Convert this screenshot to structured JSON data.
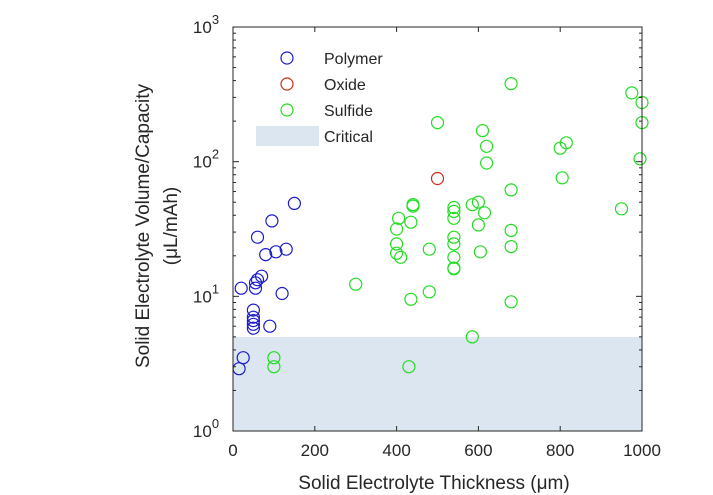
{
  "chart_data": {
    "type": "scatter",
    "title": "",
    "xlabel": "Solid Electrolyte Thickness (μm)",
    "ylabel_line1": "Solid Electrolyte Volume/Capacity",
    "ylabel_line2": "(μL/mAh)",
    "xlim": [
      0,
      1000
    ],
    "ylim": [
      1,
      1000
    ],
    "yscale": "log",
    "grid": false,
    "legend_position": "top-left",
    "x_ticks": [
      0,
      200,
      400,
      600,
      800,
      1000
    ],
    "y_ticks": [
      {
        "value": 1,
        "base": "10",
        "exp": "0"
      },
      {
        "value": 10,
        "base": "10",
        "exp": "1"
      },
      {
        "value": 100,
        "base": "10",
        "exp": "2"
      },
      {
        "value": 1000,
        "base": "10",
        "exp": "3"
      }
    ],
    "critical_region": {
      "name": "Critical",
      "y_min": 1,
      "y_max": 5,
      "color": "#dce6f0"
    },
    "series": [
      {
        "name": "Polymer",
        "color": "#1a1acc",
        "points": [
          [
            15,
            2.9
          ],
          [
            20,
            11.5
          ],
          [
            25,
            3.5
          ],
          [
            50,
            5.8
          ],
          [
            50,
            6.2
          ],
          [
            50,
            6.6
          ],
          [
            50,
            7.0
          ],
          [
            50,
            7.9
          ],
          [
            55,
            11.5
          ],
          [
            55,
            12.6
          ],
          [
            60,
            13.3
          ],
          [
            60,
            27.5
          ],
          [
            70,
            14.1
          ],
          [
            80,
            20.4
          ],
          [
            90,
            6.0
          ],
          [
            95,
            36.3
          ],
          [
            105,
            21.4
          ],
          [
            120,
            10.5
          ],
          [
            130,
            22.4
          ],
          [
            150,
            49.0
          ]
        ]
      },
      {
        "name": "Oxide",
        "color": "#cc2a1a",
        "points": [
          [
            500,
            75
          ]
        ]
      },
      {
        "name": "Sulfide",
        "color": "#22dd22",
        "points": [
          [
            100,
            3.0
          ],
          [
            100,
            3.5
          ],
          [
            300,
            12.3
          ],
          [
            400,
            20.9
          ],
          [
            400,
            24.5
          ],
          [
            400,
            31.6
          ],
          [
            405,
            38.0
          ],
          [
            410,
            19.5
          ],
          [
            430,
            3.0
          ],
          [
            435,
            9.5
          ],
          [
            435,
            35.5
          ],
          [
            440,
            46.8
          ],
          [
            440,
            48.0
          ],
          [
            480,
            10.8
          ],
          [
            480,
            22.4
          ],
          [
            500,
            195
          ],
          [
            540,
            16.0
          ],
          [
            540,
            16.2
          ],
          [
            540,
            19.5
          ],
          [
            540,
            24.5
          ],
          [
            540,
            27.5
          ],
          [
            540,
            38.0
          ],
          [
            540,
            42.7
          ],
          [
            540,
            45.7
          ],
          [
            585,
            5.0
          ],
          [
            585,
            47.9
          ],
          [
            600,
            33.9
          ],
          [
            600,
            50.1
          ],
          [
            605,
            21.4
          ],
          [
            610,
            170
          ],
          [
            615,
            41.7
          ],
          [
            620,
            97.7
          ],
          [
            620,
            130
          ],
          [
            680,
            9.1
          ],
          [
            680,
            23.4
          ],
          [
            680,
            30.9
          ],
          [
            680,
            61.7
          ],
          [
            680,
            380
          ],
          [
            800,
            126
          ],
          [
            805,
            75.9
          ],
          [
            815,
            138
          ],
          [
            950,
            44.7
          ],
          [
            975,
            324
          ],
          [
            995,
            105
          ],
          [
            1000,
            195
          ],
          [
            1000,
            275
          ]
        ]
      }
    ]
  }
}
